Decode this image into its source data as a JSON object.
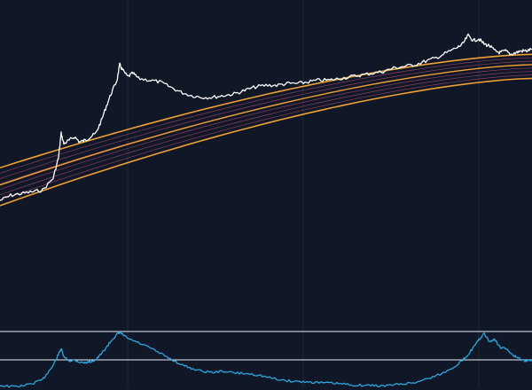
{
  "colors": {
    "background": "#101726",
    "grid": "#1f2a3a",
    "band_outer": "#f0a030",
    "band_inner": "#c0507a",
    "price": "#ffffff",
    "oscillator": "#2aa8e0",
    "oscillator_level": "#e8eef5"
  },
  "chart_data": [
    {
      "type": "line",
      "title": "",
      "xlabel": "",
      "ylabel": "",
      "x_range": [
        0,
        100
      ],
      "y_scale": "log",
      "y_range": [
        0,
        100
      ],
      "grid": true,
      "vertical_gridlines_x": [
        24,
        57,
        90
      ],
      "bands": {
        "outer": [
          {
            "x": [
              0,
              100
            ],
            "y": [
              22,
              88
            ],
            "curve": "concave"
          },
          {
            "x": [
              0,
              100
            ],
            "y": [
              0,
              74
            ],
            "curve": "concave"
          }
        ],
        "middle": {
          "x": [
            0,
            100
          ],
          "y": [
            12,
            82
          ],
          "curve": "concave"
        },
        "inner_count": 6
      },
      "series": [
        {
          "x": [
            0,
            2,
            4,
            6,
            8,
            10,
            11,
            11.5,
            12,
            13,
            14,
            15,
            16,
            17,
            18,
            19,
            20,
            21,
            22,
            22.5,
            23,
            24,
            25,
            26,
            28,
            30,
            32,
            34,
            36,
            38,
            40,
            42,
            44,
            46,
            48,
            50,
            52,
            54,
            56,
            58,
            60,
            62,
            64,
            66,
            68,
            70,
            72,
            74,
            76,
            78,
            80,
            82,
            84,
            86,
            87,
            88,
            89,
            90,
            91,
            92,
            93,
            94,
            95,
            96,
            97,
            98,
            99,
            100
          ],
          "y": [
            3,
            6,
            7,
            8,
            9,
            16,
            28,
            42,
            36,
            38,
            40,
            37,
            38,
            40,
            42,
            49,
            58,
            66,
            73,
            82,
            79,
            75,
            77,
            74,
            73,
            72,
            69,
            66,
            64,
            63,
            63,
            64,
            65,
            67,
            69,
            70,
            70,
            71,
            71,
            72,
            73,
            73,
            74,
            75,
            76,
            77,
            78,
            80,
            81,
            82,
            84,
            86,
            89,
            92,
            94,
            99,
            96,
            97,
            94,
            93,
            90,
            89,
            90,
            88,
            89,
            90,
            90,
            91
          ]
        }
      ]
    },
    {
      "type": "line",
      "title": "",
      "xlabel": "",
      "ylabel": "",
      "x_range": [
        0,
        100
      ],
      "y_range": [
        0,
        1
      ],
      "reference_lines": [
        1,
        0.5
      ],
      "series": [
        {
          "x": [
            0,
            2,
            4,
            6,
            8,
            9,
            10,
            11,
            11.5,
            12,
            13,
            14,
            15,
            16,
            17,
            18,
            19,
            20,
            21,
            22,
            22.5,
            23,
            24,
            26,
            28,
            30,
            32,
            34,
            36,
            38,
            40,
            42,
            44,
            46,
            48,
            50,
            52,
            54,
            56,
            58,
            60,
            62,
            64,
            66,
            68,
            70,
            72,
            74,
            76,
            78,
            80,
            82,
            84,
            86,
            87,
            88,
            89,
            90,
            91,
            92,
            93,
            94,
            95,
            96,
            97,
            98,
            99,
            100
          ],
          "y": [
            0.05,
            0.03,
            0.04,
            0.08,
            0.15,
            0.28,
            0.4,
            0.6,
            0.7,
            0.55,
            0.48,
            0.5,
            0.46,
            0.45,
            0.47,
            0.5,
            0.6,
            0.72,
            0.85,
            0.95,
            0.98,
            0.95,
            0.88,
            0.8,
            0.72,
            0.62,
            0.52,
            0.42,
            0.35,
            0.3,
            0.28,
            0.3,
            0.27,
            0.26,
            0.24,
            0.2,
            0.16,
            0.13,
            0.12,
            0.11,
            0.1,
            0.09,
            0.08,
            0.06,
            0.05,
            0.05,
            0.04,
            0.06,
            0.08,
            0.1,
            0.16,
            0.22,
            0.3,
            0.42,
            0.5,
            0.6,
            0.72,
            0.85,
            0.96,
            0.82,
            0.86,
            0.72,
            0.7,
            0.62,
            0.55,
            0.5,
            0.48,
            0.5
          ]
        }
      ]
    }
  ]
}
